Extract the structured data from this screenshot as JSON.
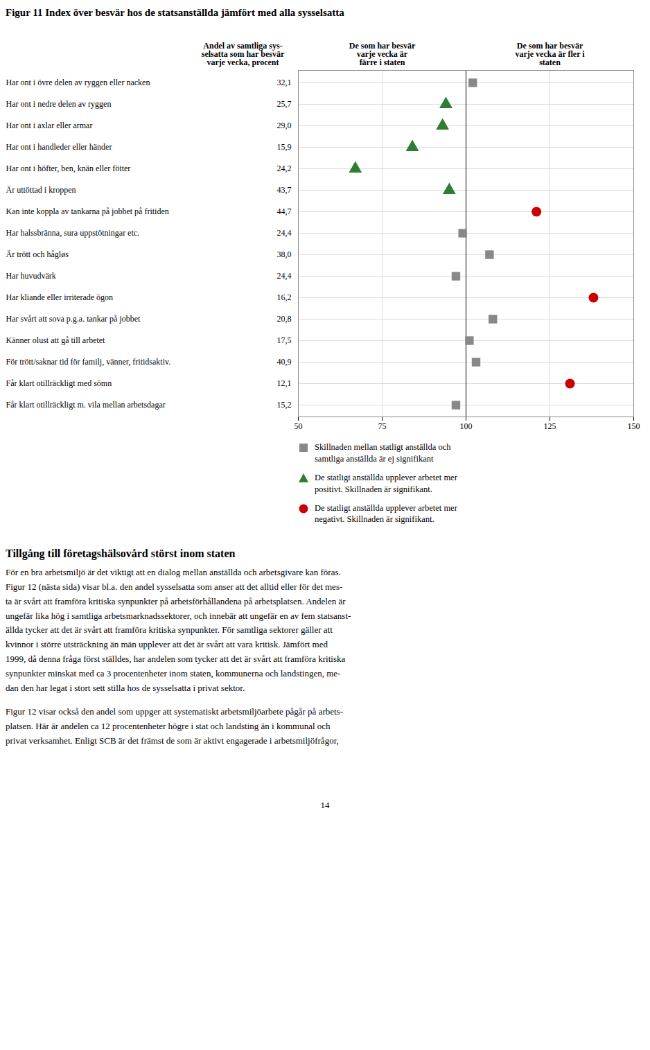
{
  "chart_data": {
    "type": "scatter",
    "title": "Figur 11 Index över besvär hos de statsanställda jämfört med alla sysselsatta",
    "categories": [
      "Har ont i övre delen av ryggen eller nacken",
      "Har ont i nedre delen av ryggen",
      "Har ont i axlar eller armar",
      "Har ont i handleder eller händer",
      "Har ont i höfter, ben, knän eller fötter",
      "Är uttöttad i kroppen",
      "Kan inte koppla av tankarna på jobbet på fritiden",
      "Har halssbränna, sura uppstötningar etc.",
      "Är trött och hågløs",
      "Har huvudvärk",
      "Har kliande eller irriterade ögon",
      "Har svårt att sova p.g.a. tankar på jobbet",
      "Känner olust att gå till arbetet",
      "För trött/saknar tid för familj, vänner, fritidsaktiv.",
      "Får klart otillräckligt med sömn",
      "Får klart otillräckligt m. vila mellan arbetsdagar"
    ],
    "share_values": [
      32.1,
      25.7,
      29.0,
      15.9,
      24.2,
      43.7,
      44.7,
      24.4,
      38.0,
      24.4,
      16.2,
      20.8,
      17.5,
      40.9,
      12.1,
      15.2
    ],
    "share_labels": [
      "32,1",
      "25,7",
      "29,0",
      "15,9",
      "24,2",
      "43,7",
      "44,7",
      "24,4",
      "38,0",
      "24,4",
      "16,2",
      "20,8",
      "17,5",
      "40,9",
      "12,1",
      "15,2"
    ],
    "series": [
      {
        "name": "Skillnaden mellan statligt anställda och\nsamtliga anställda är ej signifikant",
        "color": "#888888",
        "marker": "square",
        "values": [
          102,
          null,
          null,
          null,
          null,
          null,
          null,
          99,
          107,
          97,
          null,
          108,
          101,
          103,
          null,
          97
        ]
      },
      {
        "name": "De statligt anställda upplever arbetet mer\npositivt. Skillnaden är signifikant.",
        "color": "#2e7d32",
        "marker": "triangle",
        "values": [
          null,
          94,
          93,
          84,
          67,
          95,
          null,
          null,
          null,
          null,
          null,
          null,
          null,
          null,
          null,
          null
        ]
      },
      {
        "name": "De statligt anställda upplever arbetet mer\nnegativt. Skillnaden är signifikant.",
        "color": "#cc0000",
        "marker": "circle",
        "values": [
          null,
          null,
          null,
          null,
          null,
          null,
          121,
          null,
          null,
          null,
          138,
          null,
          null,
          null,
          131,
          null
        ]
      }
    ],
    "xlim": [
      50,
      150
    ],
    "xticks": [
      50,
      75,
      100,
      125,
      150
    ],
    "reference_line": 100,
    "grid": true,
    "legend": "bottom",
    "annotations": [
      "Andel av samtliga sys-\nselsatta som har besvär\nvarje vecka, procent",
      "De som har besvär\nvarje vecka är\nfärre i staten",
      "De som har besvär\nvarje vecka är fler i\nstaten",
      "Tillgång till företagshälsovård störst inom staten",
      "För en bra arbetsmiljö är det viktigt att en dialog mellan anställda och arbetsgivare kan föras.\nFigur 12 (nästa sida) visar bl.a. den andel sysselsatta som anser att det alltid eller för det mes-\nta är svårt att framföra kritiska synpunkter på arbetsförhållandena på arbetsplatsen. Andelen är\nungefär lika hög i samtliga arbetsmarknadssektorer, och innebär att ungefär en av fem statsanst-\nällda tycker att det är svårt att framföra kritiska synpunkter. För samtliga sektorer gäller att\nkvinnor i större utsträckning än män upplever att det är svårt att vara kritisk. Jämfört med\n1999, då denna fråga först ställdes, har andelen som tycker att det är svårt att framföra kritiska\nsynpunkter minskat med ca 3 procentenheter inom staten, kommunerna och landstingen, me-\ndan den har legat i stort sett stilla hos de sysselsatta i privat sektor.",
      "Figur 12 visar också den andel som uppger att systematiskt arbetsmiljöarbete pågår på arbets-\nplatsen. Här är andelen ca 12 procentenheter högre i stat och landsting än i kommunal och\nprivat verksamhet. Enligt SCB är det främst de som är aktivt engagerade i arbetsmiljöfrågor,",
      "14"
    ]
  }
}
